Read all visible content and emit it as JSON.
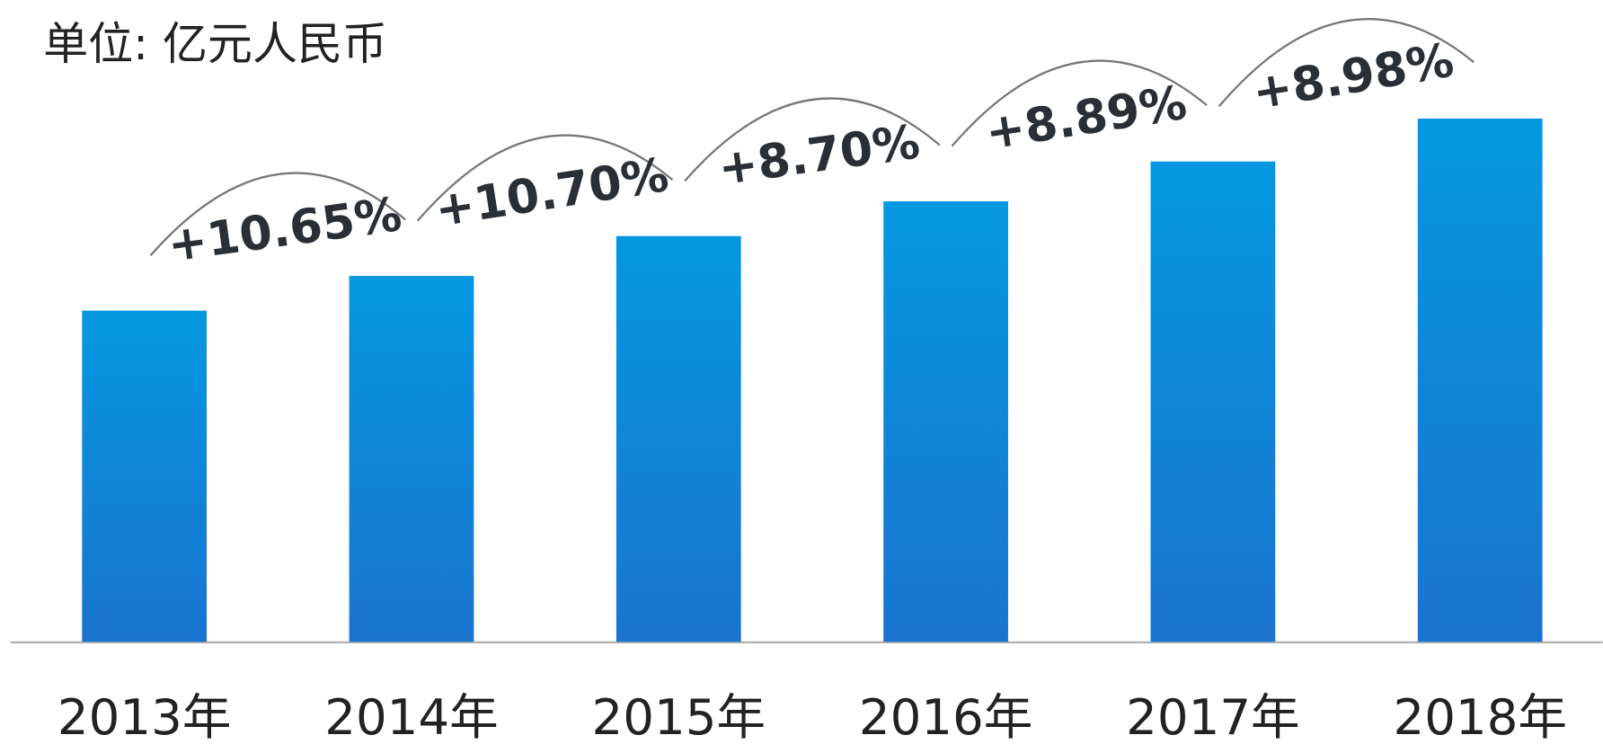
{
  "chart_data": {
    "type": "bar",
    "title": "单位: 亿元人民币",
    "categories": [
      "2013年",
      "2014年",
      "2015年",
      "2016年",
      "2017年",
      "2018年"
    ],
    "values": [
      324,
      358,
      397,
      431,
      470,
      512
    ],
    "color": "#0d86d8",
    "ylim": [
      0,
      540
    ],
    "annotations": [
      "+10.65%",
      "+10.70%",
      "+8.70%",
      "+8.89%",
      "+8.98%"
    ]
  }
}
